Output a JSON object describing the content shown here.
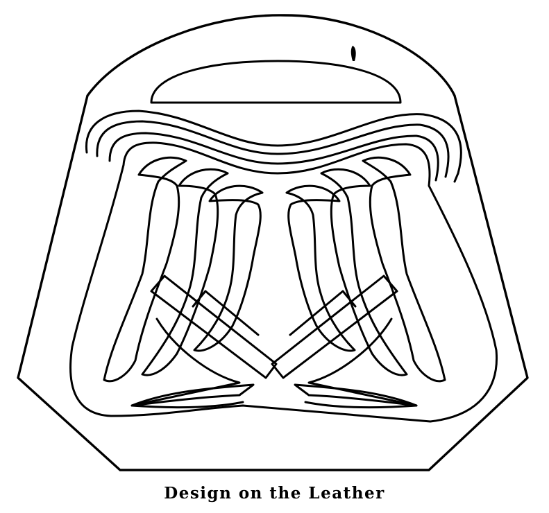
{
  "figure": {
    "caption": "Design on the Leather",
    "ink_color": "#000000",
    "paper_color": "#ffffff"
  }
}
